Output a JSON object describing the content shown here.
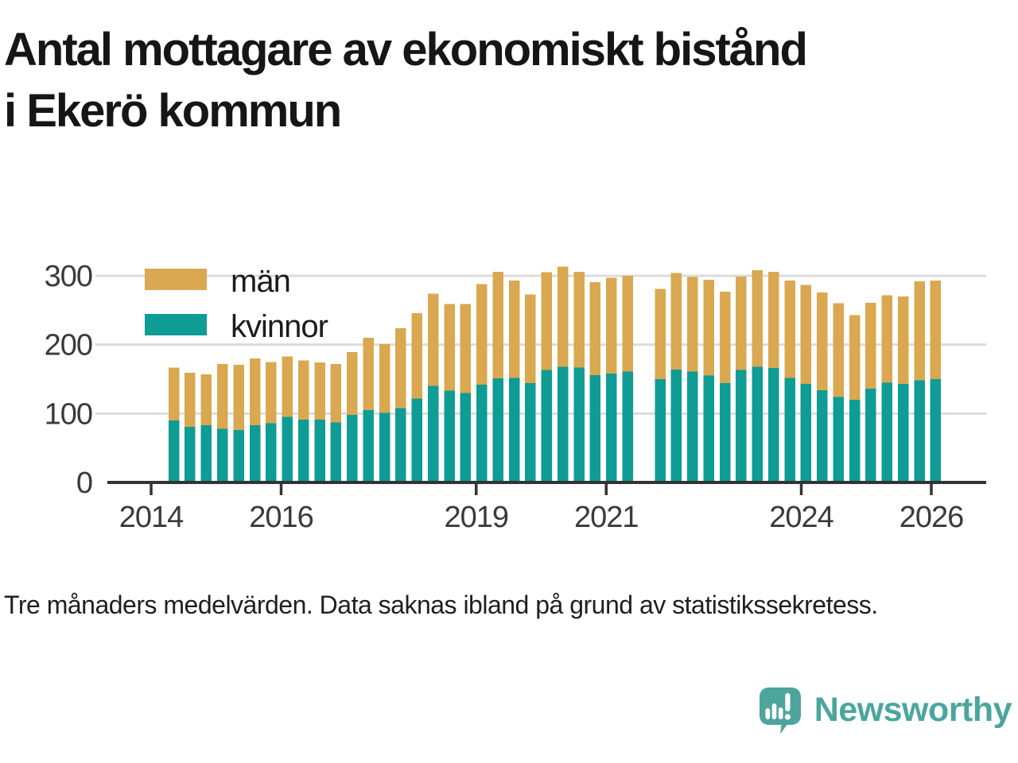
{
  "title": "Antal mottagare av ekonomiskt bistånd\ni Ekerö kommun",
  "footnote": "Tre månaders medelvärden. Data saknas ibland på grund av statistikssekretess.",
  "brand": {
    "name": "Newsworthy",
    "icon": "newsworthy-speech-bubble-chart-icon",
    "color": "#4ba69d"
  },
  "colors": {
    "men": "#d9a850",
    "kvinnor": "#0e9c94",
    "gridline": "#dcdcdc",
    "axis": "#333333",
    "tick_label": "#3a3a3a",
    "text": "#161616"
  },
  "chart_data": {
    "type": "bar",
    "stacked": true,
    "title": "Antal mottagare av ekonomiskt bistånd i Ekerö kommun",
    "xlabel": "",
    "ylabel": "",
    "ylim": [
      0,
      320
    ],
    "yticks": [
      0,
      100,
      200,
      300
    ],
    "xticks": [
      2014,
      2016,
      2019,
      2021,
      2024,
      2026
    ],
    "grid": true,
    "legend_position": "top-left",
    "note": "Missing bar (null) = data saknas på grund av statistikssekretess",
    "categories": [
      "2014-Q2",
      "2014-Q3",
      "2014-Q4",
      "2015-Q1",
      "2015-Q2",
      "2015-Q3",
      "2015-Q4",
      "2016-Q1",
      "2016-Q2",
      "2016-Q3",
      "2016-Q4",
      "2017-Q1",
      "2017-Q2",
      "2017-Q3",
      "2017-Q4",
      "2018-Q1",
      "2018-Q2",
      "2018-Q3",
      "2018-Q4",
      "2019-Q1",
      "2019-Q2",
      "2019-Q3",
      "2019-Q4",
      "2020-Q1",
      "2020-Q2",
      "2020-Q3",
      "2020-Q4",
      "2021-Q1",
      "2021-Q2",
      "2021-Q3",
      "2021-Q4",
      "2022-Q1",
      "2022-Q2",
      "2022-Q3",
      "2022-Q4",
      "2023-Q1",
      "2023-Q2",
      "2023-Q3",
      "2023-Q4",
      "2024-Q1",
      "2024-Q2",
      "2024-Q3",
      "2024-Q4",
      "2025-Q1",
      "2025-Q2",
      "2025-Q3",
      "2025-Q4",
      "2026-Q1"
    ],
    "series": [
      {
        "name": "kvinnor",
        "color": "#0e9c94",
        "values": [
          90,
          81,
          83,
          78,
          76,
          83,
          86,
          95,
          91,
          91,
          87,
          98,
          105,
          101,
          108,
          122,
          140,
          133,
          130,
          142,
          151,
          152,
          144,
          163,
          168,
          167,
          156,
          158,
          161,
          null,
          150,
          164,
          161,
          155,
          144,
          163,
          168,
          166,
          152,
          143,
          134,
          124,
          120,
          136,
          145,
          143,
          148,
          150
        ]
      },
      {
        "name": "män",
        "color": "#d9a850",
        "values": [
          77,
          78,
          74,
          94,
          95,
          97,
          89,
          88,
          86,
          83,
          85,
          91,
          105,
          100,
          116,
          124,
          134,
          126,
          129,
          146,
          155,
          141,
          129,
          142,
          145,
          139,
          135,
          139,
          139,
          null,
          131,
          140,
          137,
          139,
          133,
          136,
          140,
          140,
          141,
          144,
          142,
          136,
          123,
          125,
          127,
          127,
          144,
          143
        ]
      }
    ]
  }
}
